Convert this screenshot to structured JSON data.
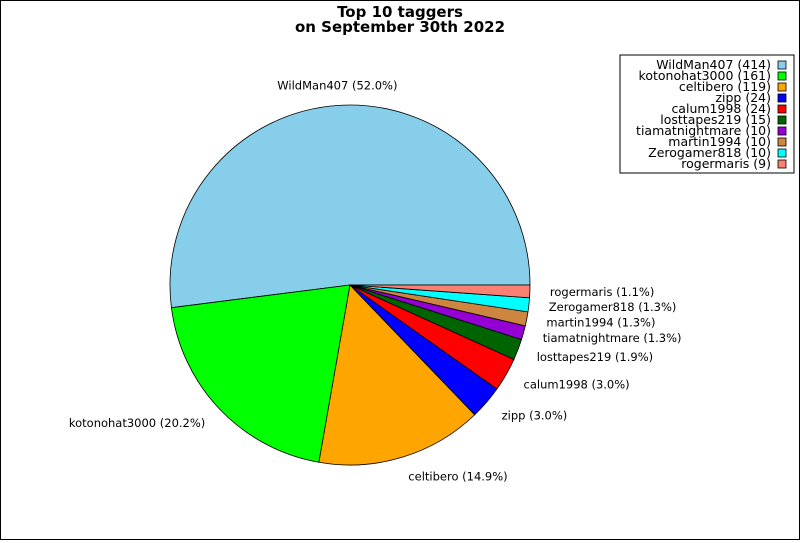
{
  "chart_data": {
    "type": "pie",
    "title_lines": [
      "Top 10 taggers",
      "on September 30th 2022"
    ],
    "slices": [
      {
        "name": "WildMan407",
        "value": 414,
        "pct_label": "WildMan407 (52.0%)",
        "legend_label": "WildMan407 (414)",
        "color": "#87ceeb"
      },
      {
        "name": "kotonohat3000",
        "value": 161,
        "pct_label": "kotonohat3000 (20.2%)",
        "legend_label": "kotonohat3000 (161)",
        "color": "#00ff00"
      },
      {
        "name": "celtibero",
        "value": 119,
        "pct_label": "celtibero (14.9%)",
        "legend_label": "celtibero (119)",
        "color": "#ffa500"
      },
      {
        "name": "zipp",
        "value": 24,
        "pct_label": "zipp (3.0%)",
        "legend_label": "zipp (24)",
        "color": "#0000ff"
      },
      {
        "name": "calum1998",
        "value": 24,
        "pct_label": "calum1998 (3.0%)",
        "legend_label": "calum1998 (24)",
        "color": "#ff0000"
      },
      {
        "name": "losttapes219",
        "value": 15,
        "pct_label": "losttapes219 (1.9%)",
        "legend_label": "losttapes219 (15)",
        "color": "#006400"
      },
      {
        "name": "tiamatnightmare",
        "value": 10,
        "pct_label": "tiamatnightmare (1.3%)",
        "legend_label": "tiamatnightmare (10)",
        "color": "#9400d3"
      },
      {
        "name": "martin1994",
        "value": 10,
        "pct_label": "martin1994 (1.3%)",
        "legend_label": "martin1994 (10)",
        "color": "#cd853f"
      },
      {
        "name": "Zerogamer818",
        "value": 10,
        "pct_label": "Zerogamer818 (1.3%)",
        "legend_label": "Zerogamer818 (10)",
        "color": "#00ffff"
      },
      {
        "name": "rogermaris",
        "value": 9,
        "pct_label": "rogermaris (1.1%)",
        "legend_label": "rogermaris (9)",
        "color": "#fa8072"
      }
    ],
    "start_angle_deg": 0,
    "direction": "counterclockwise",
    "legend_position": "top-right"
  }
}
